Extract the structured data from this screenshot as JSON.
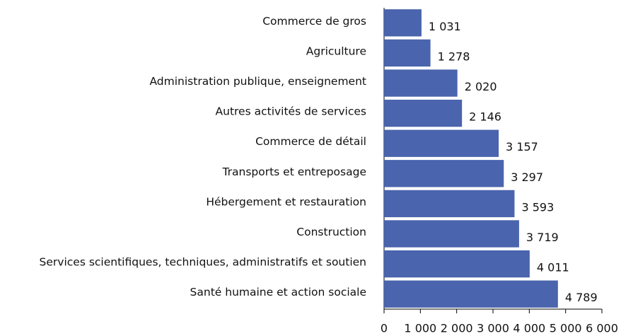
{
  "chart_data": {
    "type": "bar",
    "orientation": "horizontal",
    "color": "#4a64ad",
    "categories": [
      "Commerce de gros",
      "Agriculture",
      "Administration publique, enseignement",
      "Autres activités de services",
      "Commerce de détail",
      "Transports et entreposage",
      "Hébergement et restauration",
      "Construction",
      "Services scientifiques, techniques, administratifs et soutien",
      "Santé humaine et action sociale"
    ],
    "values": [
      1031,
      1278,
      2020,
      2146,
      3157,
      3297,
      3593,
      3719,
      4011,
      4789
    ],
    "value_labels": [
      "1 031",
      "1 278",
      "2 020",
      "2 146",
      "3 157",
      "3 297",
      "3 593",
      "3 719",
      "4 011",
      "4 789"
    ],
    "xlim": [
      0,
      6000
    ],
    "xticks": [
      0,
      {
        "value": 1000,
        "label": "1 000"
      },
      {
        "value": 2000,
        "label": "2 000"
      },
      {
        "value": 3000,
        "label": "3 000"
      },
      {
        "value": 4000,
        "label": "4 000"
      },
      {
        "value": 5000,
        "label": "5 000"
      },
      {
        "value": 6000,
        "label": "6 000"
      }
    ]
  }
}
